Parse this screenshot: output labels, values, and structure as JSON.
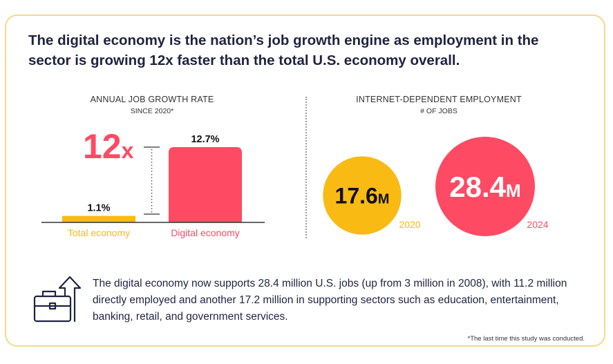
{
  "headline": "The digital economy is the nation’s job growth engine as employment in the sector is growing 12x faster than the total U.S. economy overall.",
  "left_panel": {
    "title": "ANNUAL JOB GROWTH RATE",
    "subtitle": "SINCE 2020*",
    "multiplier_number": "12",
    "multiplier_suffix": "x"
  },
  "right_panel": {
    "title": "INTERNET-DEPENDENT EMPLOYMENT",
    "subtitle": "# OF JOBS"
  },
  "body_text": "The digital economy now supports 28.4 million U.S. jobs (up from 3 million in 2008), with 11.2 million directly employed and another 17.2 million in supporting sectors such as education, entertainment, banking, retail, and government services.",
  "footnote": "*The last time this study was conducted.",
  "icon": "briefcase-growth-icon",
  "colors": {
    "gold": "#F9BA14",
    "pink": "#FF4A63",
    "navy": "#1F2340",
    "frame": "#F5D98A"
  },
  "chart_data": [
    {
      "type": "bar",
      "title": "ANNUAL JOB GROWTH RATE",
      "subtitle": "SINCE 2020*",
      "categories": [
        "Total economy",
        "Digital economy"
      ],
      "values": [
        1.1,
        12.7
      ],
      "value_labels": [
        "1.1%",
        "12.7%"
      ],
      "unit": "%",
      "ylim": [
        0,
        12.7
      ],
      "annotation": "12x"
    },
    {
      "type": "bubble",
      "title": "INTERNET-DEPENDENT EMPLOYMENT",
      "subtitle": "# OF JOBS",
      "categories": [
        "2020",
        "2024"
      ],
      "values": [
        17.6,
        28.4
      ],
      "value_labels": [
        "17.6",
        "28.4"
      ],
      "unit": "M"
    }
  ]
}
